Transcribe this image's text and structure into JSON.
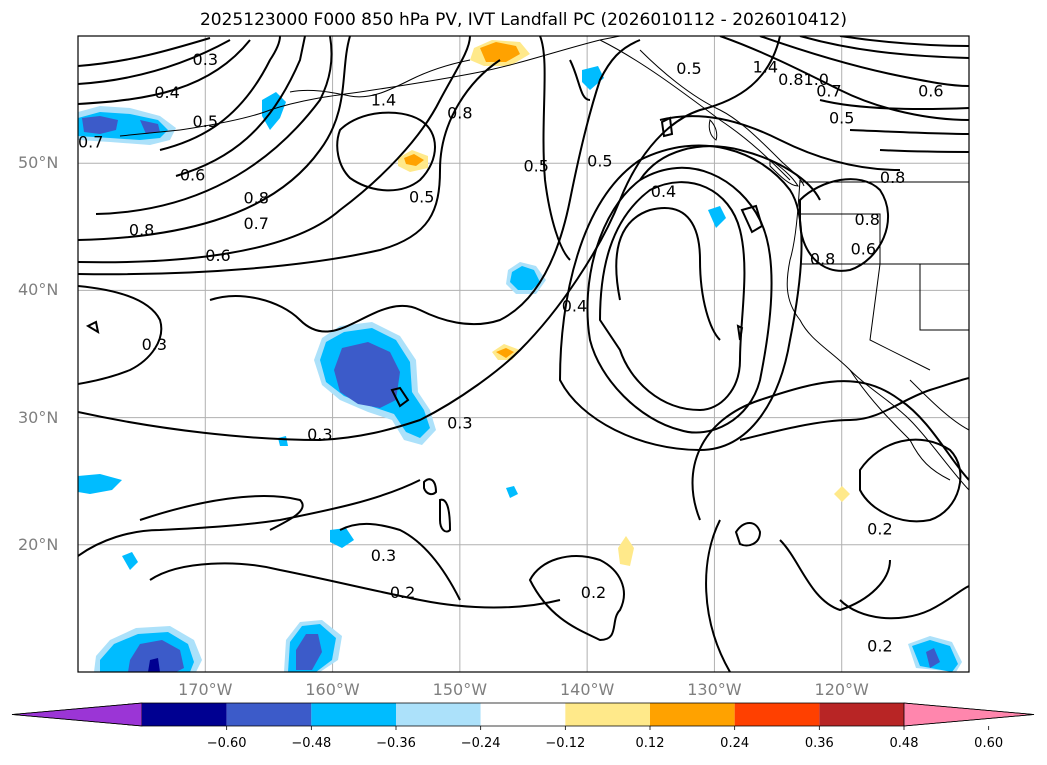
{
  "title": "2025123000 F000 850 hPa PV, IVT Landfall PC (2026010112 - 2026010412)",
  "map": {
    "projection": "plate-carree",
    "lon_range": [
      -180,
      -110
    ],
    "lat_range": [
      10,
      60
    ],
    "gridlines": true,
    "lat_ticks": [
      {
        "value": 50,
        "label": "50°N"
      },
      {
        "value": 40,
        "label": "40°N"
      },
      {
        "value": 30,
        "label": "30°N"
      },
      {
        "value": 20,
        "label": "20°N"
      }
    ],
    "lon_ticks": [
      {
        "value": -170,
        "label": "170°W"
      },
      {
        "value": -160,
        "label": "160°W"
      },
      {
        "value": -150,
        "label": "150°W"
      },
      {
        "value": -140,
        "label": "140°W"
      },
      {
        "value": -130,
        "label": "130°W"
      },
      {
        "value": -120,
        "label": "120°W"
      }
    ]
  },
  "contour_labels": [
    {
      "text": "0.3",
      "lon": -170,
      "lat": 58.2
    },
    {
      "text": "0.4",
      "lon": -173,
      "lat": 55.6
    },
    {
      "text": "0.5",
      "lon": -170,
      "lat": 53.3
    },
    {
      "text": "0.7",
      "lon": -179,
      "lat": 51.7
    },
    {
      "text": "0.6",
      "lon": -171,
      "lat": 49.1
    },
    {
      "text": "0.8",
      "lon": -166,
      "lat": 47.3
    },
    {
      "text": "0.7",
      "lon": -166,
      "lat": 45.3
    },
    {
      "text": "0.8",
      "lon": -175,
      "lat": 44.8
    },
    {
      "text": "0.6",
      "lon": -169,
      "lat": 42.8
    },
    {
      "text": "0.3",
      "lon": -174,
      "lat": 35.8
    },
    {
      "text": "0.3",
      "lon": -161,
      "lat": 28.7
    },
    {
      "text": "0.3",
      "lon": -150,
      "lat": 29.6
    },
    {
      "text": "1.4",
      "lon": -156,
      "lat": 55
    },
    {
      "text": "0.8",
      "lon": -150,
      "lat": 54
    },
    {
      "text": "0.5",
      "lon": -153,
      "lat": 47.4
    },
    {
      "text": "0.5",
      "lon": -144,
      "lat": 49.8
    },
    {
      "text": "0.5",
      "lon": -139,
      "lat": 50.2
    },
    {
      "text": "0.5",
      "lon": -132,
      "lat": 57.5
    },
    {
      "text": "0.4",
      "lon": -134,
      "lat": 47.8
    },
    {
      "text": "0.4",
      "lon": -141,
      "lat": 38.8
    },
    {
      "text": "1.4",
      "lon": -126,
      "lat": 57.6
    },
    {
      "text": "0.8",
      "lon": -124,
      "lat": 56.6
    },
    {
      "text": "1.0",
      "lon": -122,
      "lat": 56.6
    },
    {
      "text": "0.7",
      "lon": -121,
      "lat": 55.7
    },
    {
      "text": "0.5",
      "lon": -120,
      "lat": 53.6
    },
    {
      "text": "0.6",
      "lon": -113,
      "lat": 55.7
    },
    {
      "text": "0.8",
      "lon": -116,
      "lat": 48.9
    },
    {
      "text": "0.8",
      "lon": -118,
      "lat": 45.6
    },
    {
      "text": "0.8",
      "lon": -121.5,
      "lat": 42.5
    },
    {
      "text": "0.6",
      "lon": -118.3,
      "lat": 43.3
    },
    {
      "text": "0.3",
      "lon": -156,
      "lat": 19.2
    },
    {
      "text": "0.2",
      "lon": -154.5,
      "lat": 16.3
    },
    {
      "text": "0.2",
      "lon": -139.5,
      "lat": 16.3
    },
    {
      "text": "0.2",
      "lon": -117,
      "lat": 21.3
    },
    {
      "text": "0.2",
      "lon": -117,
      "lat": 12.1
    }
  ],
  "colorbar": {
    "extend": "both",
    "colors": [
      "#9b35d6",
      "#000091",
      "#3c5bc9",
      "#00bcff",
      "#ace1fa",
      "#ffffff",
      "#ffe98a",
      "#ffa200",
      "#ff4000",
      "#b82525",
      "#ff86ad"
    ],
    "tick_labels": [
      "−0.60",
      "−0.48",
      "−0.36",
      "−0.24",
      "−0.12",
      "0.12",
      "0.24",
      "0.36",
      "0.48",
      "0.60"
    ]
  }
}
